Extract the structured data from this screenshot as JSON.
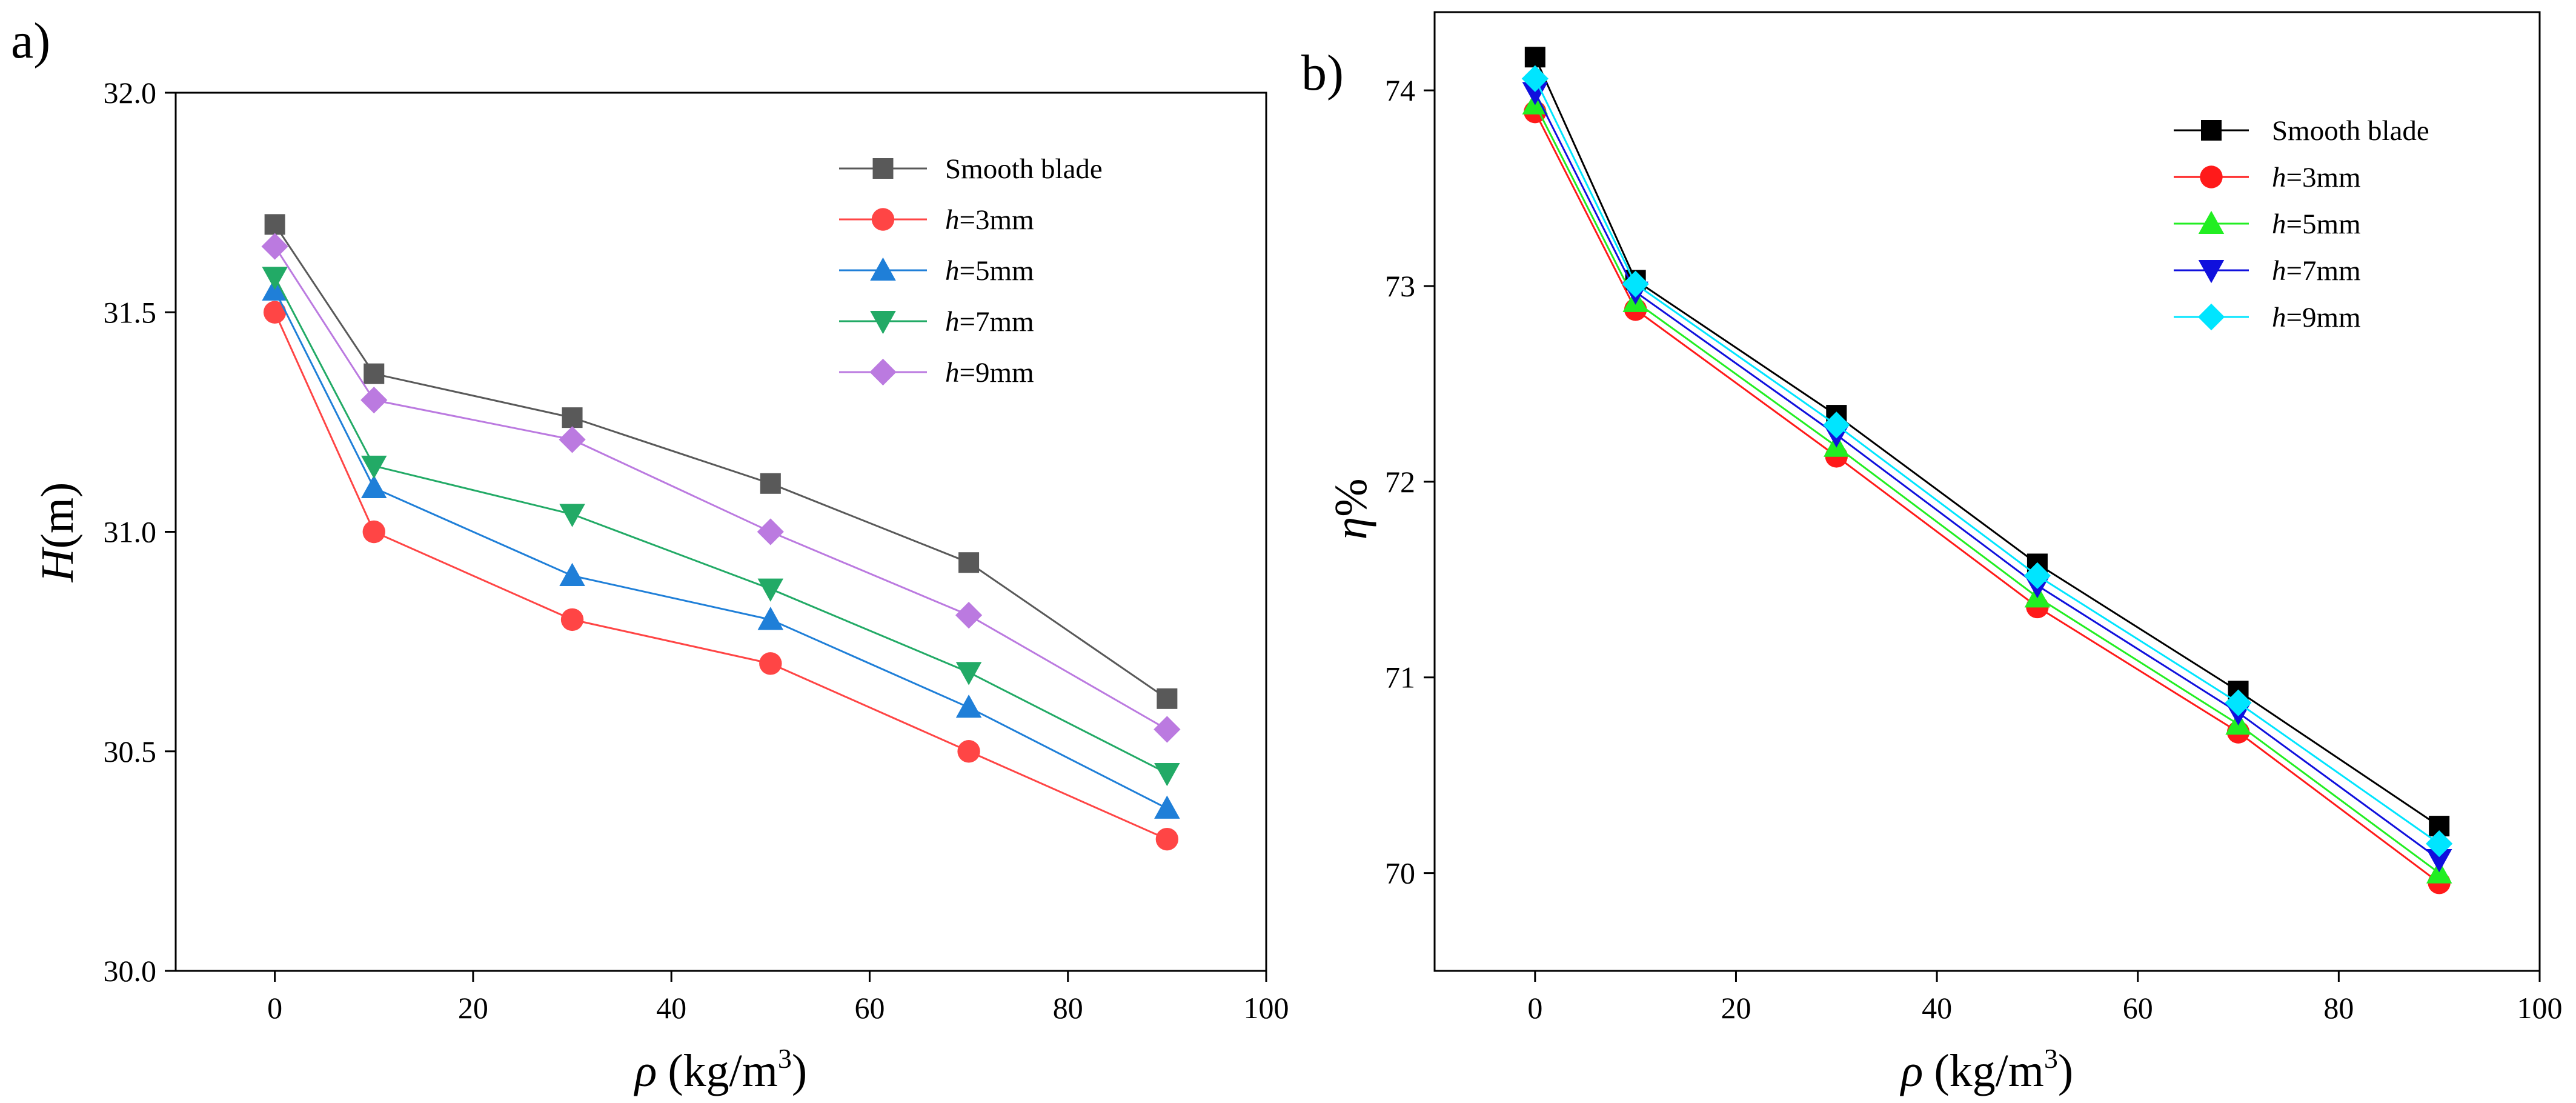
{
  "chart_data": [
    {
      "type": "line",
      "panel_label": "a)",
      "xlabel_symbol": "ρ",
      "xlabel_units": "(kg/m",
      "xlabel_exp": "3",
      "xlabel_close": ")",
      "ylabel_symbol": "H",
      "ylabel_units": "(m)",
      "xlim": [
        -10,
        100
      ],
      "ylim": [
        30.0,
        32.0
      ],
      "xticks": [
        0,
        20,
        40,
        60,
        80,
        100
      ],
      "xtick_labels": [
        "0",
        "20",
        "40",
        "60",
        "80",
        "100"
      ],
      "yticks": [
        30.0,
        30.5,
        31.0,
        31.5,
        32.0
      ],
      "ytick_labels": [
        "30.0",
        "30.5",
        "31.0",
        "31.5",
        "32.0"
      ],
      "legend_position": "top-right",
      "x": [
        0,
        10,
        30,
        50,
        70,
        90
      ],
      "series": [
        {
          "name": "Smooth blade",
          "label_italic": "",
          "label_rest": "Smooth blade",
          "color": "#595959",
          "marker": "square",
          "values": [
            31.7,
            31.36,
            31.26,
            31.11,
            30.93,
            30.62
          ]
        },
        {
          "name": "h=3mm",
          "label_italic": "h",
          "label_rest": "=3mm",
          "color": "#ff4545",
          "marker": "circle",
          "values": [
            31.5,
            31.0,
            30.8,
            30.7,
            30.5,
            30.3
          ]
        },
        {
          "name": "h=5mm",
          "label_italic": "h",
          "label_rest": "=5mm",
          "color": "#1f7fd8",
          "marker": "triangle-up",
          "values": [
            31.55,
            31.1,
            30.9,
            30.8,
            30.6,
            30.37
          ]
        },
        {
          "name": "h=7mm",
          "label_italic": "h",
          "label_rest": "=7mm",
          "color": "#22aa66",
          "marker": "triangle-down",
          "values": [
            31.58,
            31.15,
            31.04,
            30.87,
            30.68,
            30.45
          ]
        },
        {
          "name": "h=9mm",
          "label_italic": "h",
          "label_rest": "=9mm",
          "color": "#bb7ae0",
          "marker": "diamond",
          "values": [
            31.65,
            31.3,
            31.21,
            31.0,
            30.81,
            30.55
          ]
        }
      ]
    },
    {
      "type": "line",
      "panel_label": "b)",
      "xlabel_symbol": "ρ",
      "xlabel_units": "(kg/m",
      "xlabel_exp": "3",
      "xlabel_close": ")",
      "ylabel_symbol": "η",
      "ylabel_units": "%",
      "xlim": [
        -10,
        100
      ],
      "ylim": [
        69.5,
        74.4
      ],
      "xticks": [
        0,
        20,
        40,
        60,
        80,
        100
      ],
      "xtick_labels": [
        "0",
        "20",
        "40",
        "60",
        "80",
        "100"
      ],
      "yticks": [
        70,
        71,
        72,
        73,
        74
      ],
      "ytick_labels": [
        "70",
        "71",
        "72",
        "73",
        "74"
      ],
      "legend_position": "top-right",
      "x": [
        0,
        10,
        30,
        50,
        70,
        90
      ],
      "series": [
        {
          "name": "Smooth blade",
          "label_italic": "",
          "label_rest": "Smooth blade",
          "color": "#000000",
          "marker": "square",
          "values": [
            74.17,
            73.03,
            72.34,
            71.58,
            70.93,
            70.24
          ]
        },
        {
          "name": "h=3mm",
          "label_italic": "h",
          "label_rest": "=3mm",
          "color": "#ff1a1a",
          "marker": "circle",
          "values": [
            73.89,
            72.88,
            72.13,
            71.36,
            70.72,
            69.95
          ]
        },
        {
          "name": "h=5mm",
          "label_italic": "h",
          "label_rest": "=5mm",
          "color": "#22ee22",
          "marker": "triangle-up",
          "values": [
            73.93,
            72.92,
            72.18,
            71.41,
            70.76,
            70.0
          ]
        },
        {
          "name": "h=7mm",
          "label_italic": "h",
          "label_rest": "=7mm",
          "color": "#1010dd",
          "marker": "triangle-down",
          "values": [
            73.99,
            72.97,
            72.24,
            71.47,
            70.82,
            70.07
          ]
        },
        {
          "name": "h=9mm",
          "label_italic": "h",
          "label_rest": "=9mm",
          "color": "#00e5ff",
          "marker": "diamond",
          "values": [
            74.06,
            73.01,
            72.29,
            71.52,
            70.87,
            70.15
          ]
        }
      ]
    }
  ]
}
